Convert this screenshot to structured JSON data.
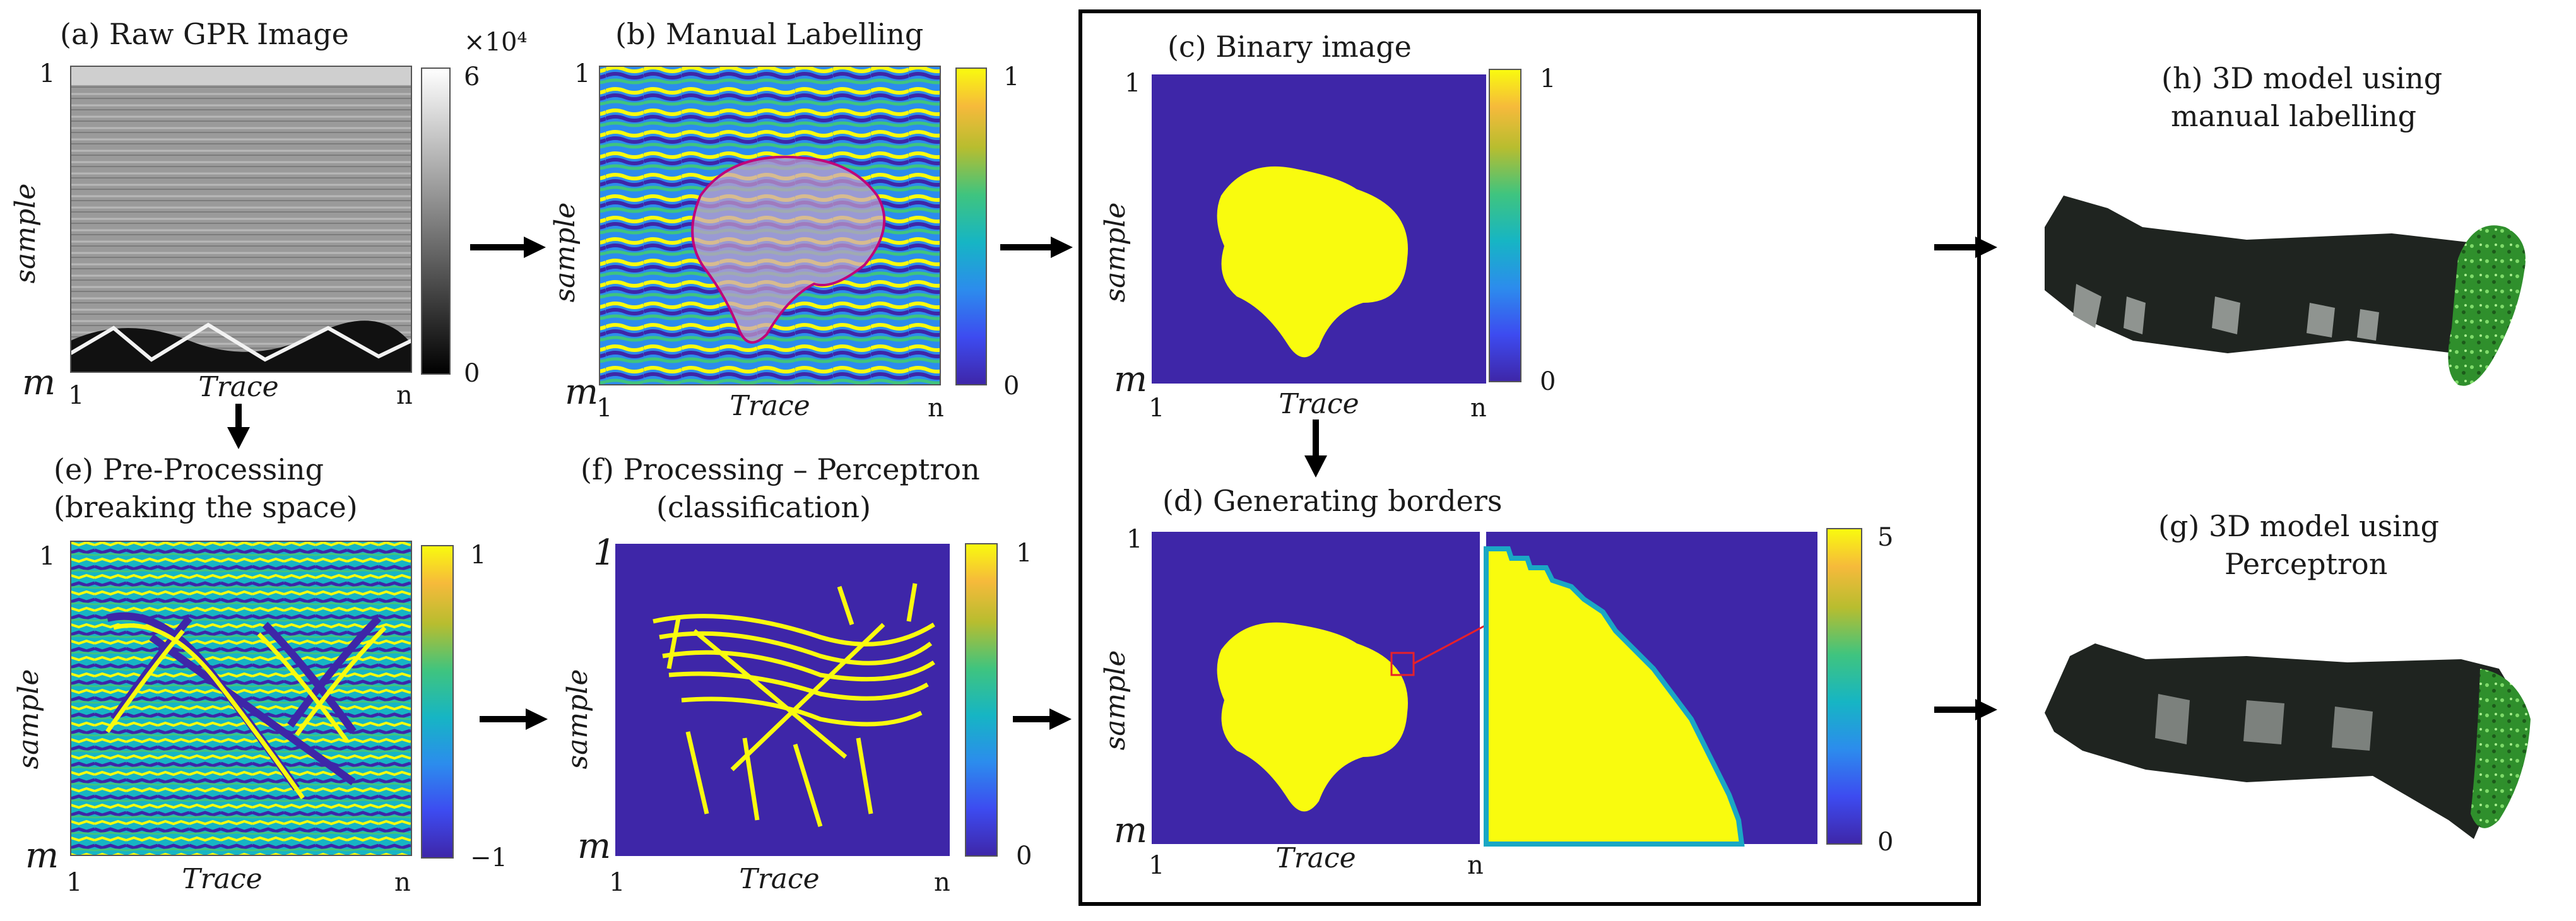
{
  "panels": {
    "a": {
      "caption": "(a) Raw GPR Image",
      "x_label": "Trace",
      "y_label": "sample",
      "tick_top": "1",
      "tick_bottom": "m",
      "tick_left": "1",
      "tick_right": "n",
      "cbar_max": "6",
      "cbar_min": "0",
      "cbar_exponent": "×10⁴"
    },
    "b": {
      "caption": "(b) Manual Labelling",
      "x_label": "Trace",
      "y_label": "sample",
      "tick_top": "1",
      "tick_bottom": "m",
      "tick_left": "1",
      "tick_right": "n",
      "cbar_max": "1",
      "cbar_min": "0"
    },
    "c": {
      "caption": "(c) Binary image",
      "x_label": "Trace",
      "y_label": "sample",
      "tick_top": "1",
      "tick_bottom": "m",
      "tick_left": "1",
      "tick_right": "n",
      "cbar_max": "1",
      "cbar_min": "0"
    },
    "d": {
      "caption": "(d) Generating borders",
      "x_label": "Trace",
      "y_label": "sample",
      "tick_top": "1",
      "tick_bottom": "m",
      "tick_left": "1",
      "tick_right": "n",
      "cbar_max": "5",
      "cbar_min": "0"
    },
    "e": {
      "caption_line1": "(e) Pre-Processing",
      "caption_line2": "(breaking the space)",
      "x_label": "Trace",
      "y_label": "sample",
      "tick_top": "1",
      "tick_bottom": "m",
      "tick_left": "1",
      "tick_right": "n",
      "cbar_max": "1",
      "cbar_min": "−1"
    },
    "f": {
      "caption_line1": "(f) Processing – Perceptron",
      "caption_line2": "(classification)",
      "x_label": "Trace",
      "y_label": "sample",
      "tick_top": "1",
      "tick_bottom": "m",
      "tick_left": "1",
      "tick_right": "n",
      "cbar_max": "1",
      "cbar_min": "0"
    },
    "h": {
      "caption_line1": "(h) 3D model using",
      "caption_line2": "manual labelling"
    },
    "g": {
      "caption_line1": "(g) 3D model using",
      "caption_line2": "Perceptron"
    }
  },
  "colors": {
    "parula_dark": "#3e26a8",
    "parula_yellow": "#f9fb0e",
    "arrow": "#000000",
    "zoom_marker": "#e8202a",
    "model_dark": "#1f2420",
    "model_green": "#3fae3a"
  }
}
